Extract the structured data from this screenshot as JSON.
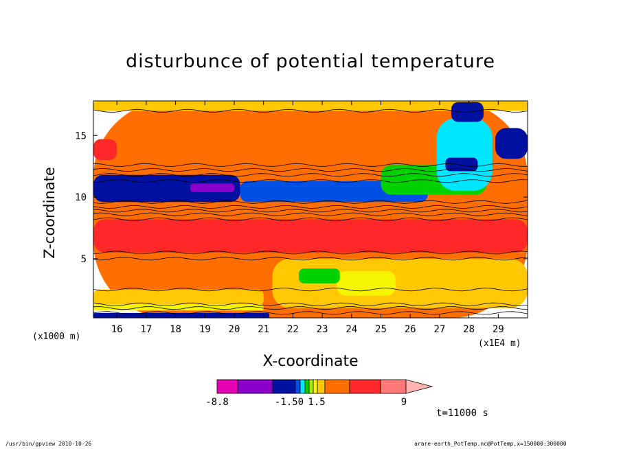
{
  "chart_data": {
    "type": "heatmap",
    "title": "disturbunce of potential temperature",
    "xlabel": "X-coordinate",
    "ylabel": "Z-coordinate",
    "x_unit_left": "(x1000 m)",
    "x_unit_right": "(x1E4 m)",
    "xlim": [
      15.2,
      30.0
    ],
    "ylim": [
      0.2,
      17.8
    ],
    "x_ticks": [
      16,
      17,
      18,
      19,
      20,
      21,
      22,
      23,
      24,
      25,
      26,
      27,
      28,
      29
    ],
    "y_ticks": [
      5,
      10,
      15
    ],
    "colorbar": {
      "labels": [
        "-8.8",
        "-1.50",
        "1.5",
        "9"
      ],
      "colors": [
        "#e600b4",
        "#8a00c8",
        "#0010a0",
        "#0050e6",
        "#00e6ff",
        "#00d200",
        "#a0f000",
        "#f5f500",
        "#ffc800",
        "#ff6e00",
        "#ff2828",
        "#ff7878",
        "#ffb4b4"
      ]
    },
    "regions": [
      {
        "color": "#ff6e00",
        "x": [
          15.2,
          30.0
        ],
        "y": [
          0.2,
          17.8
        ]
      },
      {
        "color": "#ffc800",
        "x": [
          15.2,
          30.0
        ],
        "y": [
          17.0,
          17.8
        ]
      },
      {
        "color": "#ff2828",
        "x": [
          15.2,
          30.0
        ],
        "y": [
          5.5,
          8.2
        ]
      },
      {
        "color": "#ffc800",
        "x": [
          21.3,
          30.0
        ],
        "y": [
          1.0,
          5.0
        ]
      },
      {
        "color": "#f5f500",
        "x": [
          23.5,
          25.5
        ],
        "y": [
          2.0,
          4.0
        ]
      },
      {
        "color": "#ffc800",
        "x": [
          15.2,
          21.0
        ],
        "y": [
          1.2,
          2.5
        ]
      },
      {
        "color": "#f5f500",
        "x": [
          15.2,
          21.0
        ],
        "y": [
          0.8,
          1.3
        ]
      },
      {
        "color": "#0010a0",
        "x": [
          15.2,
          21.2
        ],
        "y": [
          0.2,
          0.6
        ]
      },
      {
        "color": "#00d200",
        "x": [
          22.2,
          23.6
        ],
        "y": [
          3.0,
          4.2
        ]
      },
      {
        "color": "#0010a0",
        "x": [
          15.2,
          20.2
        ],
        "y": [
          9.6,
          11.8
        ]
      },
      {
        "color": "#8a00c8",
        "x": [
          18.5,
          20.0
        ],
        "y": [
          10.4,
          11.1
        ]
      },
      {
        "color": "#0050e6",
        "x": [
          20.2,
          26.6
        ],
        "y": [
          9.6,
          11.3
        ]
      },
      {
        "color": "#00d200",
        "x": [
          25.0,
          28.6
        ],
        "y": [
          10.2,
          12.6
        ]
      },
      {
        "color": "#00e6ff",
        "x": [
          26.9,
          28.8
        ],
        "y": [
          10.5,
          16.4
        ]
      },
      {
        "color": "#0010a0",
        "x": [
          27.2,
          28.3
        ],
        "y": [
          12.1,
          13.2
        ]
      },
      {
        "color": "#0010a0",
        "x": [
          27.4,
          28.5
        ],
        "y": [
          16.1,
          17.7
        ]
      },
      {
        "color": "#0010a0",
        "x": [
          28.9,
          30.0
        ],
        "y": [
          13.1,
          15.6
        ]
      },
      {
        "color": "#ff2828",
        "x": [
          15.2,
          16.0
        ],
        "y": [
          13.0,
          14.7
        ]
      }
    ]
  },
  "time_label": "t=11000 s",
  "footer_left": "/usr/bin/gpview  2010-10-26",
  "footer_right": "arare-earth_PotTemp.nc@PotTemp,x=150000:300000"
}
